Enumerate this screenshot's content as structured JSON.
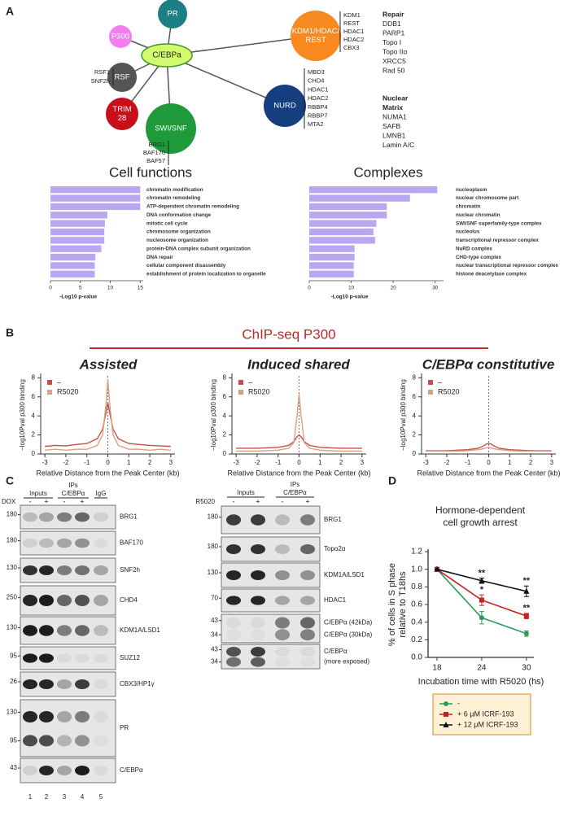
{
  "panel_labels": [
    "A",
    "B",
    "C",
    "D"
  ],
  "network": {
    "center": "C/EBPa",
    "nodes": [
      {
        "label_lines": [
          "PR"
        ],
        "color": "#1b7f85"
      },
      {
        "label_lines": [
          "P300"
        ],
        "color": "#f27ef2"
      },
      {
        "label_lines": [
          "KDM1/HDAC/",
          "REST"
        ],
        "color": "#f7891f",
        "members": [
          "KDM1",
          "REST",
          "HDAC1",
          "HDAC2",
          "CBX3"
        ]
      },
      {
        "label_lines": [
          "RSF"
        ],
        "color": "#555555",
        "members": [
          "RSF1",
          "SNF2h"
        ]
      },
      {
        "label_lines": [
          "TRIM",
          "28"
        ],
        "color": "#c8101b"
      },
      {
        "label_lines": [
          "NURD"
        ],
        "color": "#163f80",
        "members": [
          "MBD3",
          "CHD4",
          "HDAC1",
          "HDAC2",
          "RBBP4",
          "RBBP7",
          "MTA2"
        ]
      },
      {
        "label_lines": [
          "SWI/SNF"
        ],
        "color": "#1f9a3b",
        "members": [
          "BRG1",
          "BAF170",
          "BAF57"
        ]
      }
    ]
  },
  "side_lists": [
    {
      "heading_lines": [
        "Repair"
      ],
      "items": [
        "DDB1",
        "PARP1",
        "Topo I",
        "Topo IIα",
        "XRCC5",
        "Rad 50"
      ]
    },
    {
      "heading_lines": [
        "Nuclear",
        "Matrix"
      ],
      "items": [
        "NUMA1",
        "SAFB",
        "LMNB1",
        "Lamin A/C"
      ]
    }
  ],
  "chipseq_title": "ChIP-seq P300",
  "chart_data": [
    {
      "type": "hbar",
      "title": "Cell functions",
      "categories": [
        "chromatin modification",
        "chromatin remodeling",
        "ATP-dependent chromatin remodeling",
        "DNA conformation change",
        "mitotic cell cycle",
        "chromosome organization",
        "nucleosome organization",
        "protein-DNA complex subunit organization",
        "DNA repair",
        "cellular component disassembly",
        "establishment of protein localization to organelle"
      ],
      "values": [
        15,
        15,
        15,
        9.5,
        9.1,
        9,
        9,
        8.5,
        7.5,
        7.4,
        7.4
      ],
      "color": "#b9a7ef",
      "xlim": [
        0,
        15.5
      ],
      "xticks": [
        0,
        5,
        10,
        15
      ],
      "xlabel": "-Log10 p-value"
    },
    {
      "type": "hbar",
      "title": "Complexes",
      "categories": [
        "nucleoplasm",
        "nuclear chromosome part",
        "chromatin",
        "nuclear chromatin",
        "SWI/SNF superfamily-type complex",
        "nucleolus",
        "transcriptional repressor complex",
        "NuRD complex",
        "CHD-type complex",
        "nuclear transcriptional repressor complex",
        "histone deacetylase complex"
      ],
      "values": [
        30.5,
        24,
        18.5,
        18.5,
        16,
        15.3,
        15.7,
        10.8,
        10.8,
        10.6,
        10.6
      ],
      "color": "#b9a7ef",
      "xlim": [
        0,
        32
      ],
      "xticks": [
        0,
        10,
        20,
        30
      ],
      "xlabel": "-Log10 p-value"
    },
    {
      "type": "line",
      "title": "Assisted",
      "x": [
        -3,
        -2.5,
        -2,
        -1.5,
        -1,
        -0.5,
        -0.25,
        -0.1,
        0,
        0.1,
        0.25,
        0.5,
        1,
        1.5,
        2,
        2.5,
        3
      ],
      "series": [
        {
          "name": "–",
          "color": "#c0504d",
          "values": [
            0.8,
            0.9,
            0.85,
            1.0,
            1.1,
            1.6,
            2.6,
            4.2,
            5.4,
            4.2,
            2.6,
            1.6,
            1.1,
            1.0,
            0.9,
            0.85,
            0.8
          ]
        },
        {
          "name": "R5020",
          "color": "#d9a27e",
          "values": [
            0.4,
            0.5,
            0.4,
            0.5,
            0.5,
            0.9,
            2.0,
            5.0,
            7.8,
            5.0,
            2.0,
            0.9,
            0.5,
            0.5,
            0.4,
            0.5,
            0.4
          ]
        }
      ],
      "xlim": [
        -3.2,
        3.2
      ],
      "xticks": [
        -3,
        -2,
        -1,
        0,
        1,
        2,
        3
      ],
      "ylim": [
        0,
        8.2
      ],
      "yticks": [
        0,
        2,
        4,
        6,
        8
      ],
      "xlabel": "Relative Distance from the Peak Center (kb)",
      "ylabel": "−log10Pval p300 binding",
      "vline": 0,
      "legend": "upper left"
    },
    {
      "type": "line",
      "title": "Induced shared",
      "x": [
        -3,
        -2.5,
        -2,
        -1.5,
        -1,
        -0.5,
        -0.25,
        -0.1,
        0,
        0.1,
        0.25,
        0.5,
        1,
        1.5,
        2,
        2.5,
        3
      ],
      "series": [
        {
          "name": "–",
          "color": "#c0504d",
          "values": [
            0.6,
            0.6,
            0.6,
            0.65,
            0.7,
            0.9,
            1.3,
            1.8,
            2.0,
            1.8,
            1.3,
            0.9,
            0.7,
            0.65,
            0.6,
            0.6,
            0.6
          ]
        },
        {
          "name": "R5020",
          "color": "#d9a27e",
          "values": [
            0.3,
            0.3,
            0.3,
            0.35,
            0.4,
            0.6,
            1.2,
            4.0,
            6.3,
            4.0,
            1.2,
            0.6,
            0.4,
            0.35,
            0.3,
            0.3,
            0.3
          ]
        }
      ],
      "xlim": [
        -3.2,
        3.2
      ],
      "xticks": [
        -3,
        -2,
        -1,
        0,
        1,
        2,
        3
      ],
      "ylim": [
        0,
        8.2
      ],
      "yticks": [
        0,
        2,
        4,
        6,
        8
      ],
      "xlabel": "Relative Distance from the Peak Center (kb)",
      "ylabel": "−log10Pval p300 binding",
      "vline": 0,
      "legend": "upper left"
    },
    {
      "type": "line",
      "title": "C/EBPα constitutive",
      "x": [
        -3,
        -2.5,
        -2,
        -1.5,
        -1,
        -0.5,
        -0.25,
        -0.1,
        0,
        0.1,
        0.25,
        0.5,
        1,
        1.5,
        2,
        2.5,
        3
      ],
      "series": [
        {
          "name": "–",
          "color": "#c0504d",
          "values": [
            0.35,
            0.35,
            0.35,
            0.4,
            0.45,
            0.6,
            0.85,
            1.05,
            1.1,
            1.05,
            0.85,
            0.6,
            0.45,
            0.4,
            0.35,
            0.35,
            0.35
          ]
        },
        {
          "name": "R5020",
          "color": "#d9a27e",
          "values": [
            0.3,
            0.3,
            0.3,
            0.3,
            0.35,
            0.45,
            0.55,
            0.65,
            0.7,
            0.65,
            0.55,
            0.45,
            0.35,
            0.3,
            0.3,
            0.3,
            0.3
          ]
        }
      ],
      "xlim": [
        -3.2,
        3.2
      ],
      "xticks": [
        -3,
        -2,
        -1,
        0,
        1,
        2,
        3
      ],
      "ylim": [
        0,
        8.2
      ],
      "yticks": [
        0,
        2,
        4,
        6,
        8
      ],
      "xlabel": "Relative Distance from the Peak Center (kb)",
      "ylabel": "−log10Pval p300 binding",
      "vline": 0,
      "legend": "upper left"
    },
    {
      "type": "line",
      "title_lines": [
        "Hormone-dependent",
        "cell growth arrest"
      ],
      "x": [
        18,
        24,
        30
      ],
      "series": [
        {
          "name": "-",
          "color": "#2e9b5a",
          "marker": "circle",
          "values": [
            1.0,
            0.45,
            0.27
          ],
          "errors": [
            0,
            0.07,
            0.03
          ]
        },
        {
          "name": "+ 6 μM ICRF-193",
          "color": "#c8201e",
          "marker": "square",
          "values": [
            1.0,
            0.65,
            0.47
          ],
          "errors": [
            0,
            0.06,
            0.03
          ],
          "annotations": [
            null,
            "*",
            "**"
          ]
        },
        {
          "name": "+ 12 μM ICRF-193",
          "color": "#111111",
          "marker": "triangle",
          "values": [
            1.0,
            0.87,
            0.75
          ],
          "errors": [
            0,
            0.03,
            0.06
          ],
          "annotations": [
            null,
            "**",
            "**"
          ]
        }
      ],
      "xlim": [
        16.8,
        31
      ],
      "xticks": [
        18,
        24,
        30
      ],
      "ylim": [
        0,
        1.2
      ],
      "yticks": [
        {
          "value": 0,
          "label": "0.0"
        },
        {
          "value": 0.2,
          "label": "0.2"
        },
        {
          "value": 0.4,
          "label": "0.4"
        },
        {
          "value": 0.6,
          "label": "0.6"
        },
        {
          "value": 0.8,
          "label": "0.8"
        },
        {
          "value": 1,
          "label": "1.0"
        },
        {
          "value": 1.2,
          "label": "1.2"
        }
      ],
      "xlabel": "Incubation time with R5020 (hs)",
      "ylabel_lines": [
        "% of cells in S phase",
        "relative to T18hs"
      ],
      "legend": "below"
    }
  ],
  "blot_left": {
    "treatment": "DOX",
    "inputs": "Inputs",
    "ips": "IPs",
    "antibody": "C/EBPα",
    "control": "IgG",
    "signs": [
      "-",
      "+",
      "-",
      "+"
    ],
    "lanes": [
      1,
      2,
      3,
      4,
      5
    ],
    "rows": [
      {
        "label_lines": [
          "BRG1"
        ],
        "markers": [
          180
        ]
      },
      {
        "label_lines": [
          "BAF170"
        ],
        "markers": [
          180
        ]
      },
      {
        "label_lines": [
          "SNF2h"
        ],
        "markers": [
          130
        ]
      },
      {
        "label_lines": [
          "CHD4"
        ],
        "markers": [
          250
        ]
      },
      {
        "label_lines": [
          "KDM1A/LSD1"
        ],
        "markers": [
          130
        ]
      },
      {
        "label_lines": [
          "SUZ12"
        ],
        "markers": [
          95
        ]
      },
      {
        "label_lines": [
          "CBX3/HP1γ"
        ],
        "markers": [
          26
        ]
      },
      {
        "label_lines": [
          "PR"
        ],
        "markers": [
          130,
          95
        ]
      },
      {
        "label_lines": [
          "C/EBPα"
        ],
        "markers": [
          43
        ]
      }
    ]
  },
  "blot_right": {
    "treatment": "R5020",
    "inputs": "Inputs",
    "ips": "IPs",
    "antibody": "C/EBPα",
    "signs": [
      "-",
      "+",
      "-",
      "+"
    ],
    "rows": [
      {
        "label_lines": [
          "BRG1"
        ],
        "markers": [
          180
        ]
      },
      {
        "label_lines": [
          "Topo2α"
        ],
        "markers": [
          180
        ]
      },
      {
        "label_lines": [
          "KDM1A/LSD1"
        ],
        "markers": [
          130
        ]
      },
      {
        "label_lines": [
          "HDAC1"
        ],
        "markers": [
          70
        ]
      },
      {
        "label_lines": [
          "C/EBPα (42kDa)",
          "C/EBPα (30kDa)"
        ],
        "markers": [
          43,
          34
        ]
      },
      {
        "label_lines": [
          "C/EBPα",
          "(more exposed)"
        ],
        "markers": [
          43,
          34
        ]
      }
    ]
  }
}
